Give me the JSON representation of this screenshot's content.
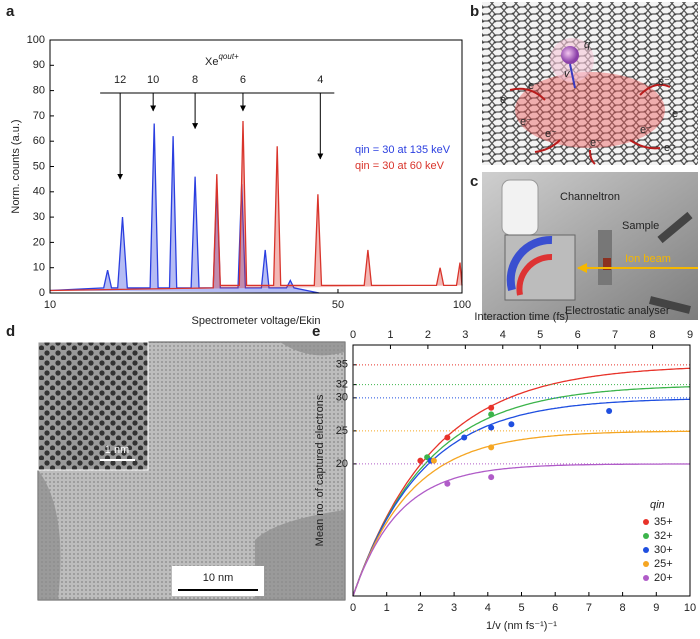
{
  "panel_labels": [
    "a",
    "b",
    "c",
    "d",
    "e"
  ],
  "chart_data": [
    {
      "type": "line",
      "title": "Xe",
      "title_superscript": "qout+",
      "x_label": "Spectrometer voltage/Ekin",
      "y_label": "Norm. counts (a.u.)",
      "xscale": "log",
      "xlim": [
        10,
        100
      ],
      "xticks": [
        10,
        50,
        100
      ],
      "ylim": [
        0,
        100
      ],
      "yticks": [
        0,
        10,
        20,
        30,
        40,
        50,
        60,
        70,
        80,
        90,
        100
      ],
      "legend": "right",
      "series": [
        {
          "name": "qin = 30 at 135 keV",
          "color": "#2b3fe0",
          "x": [
            10,
            13.5,
            13.8,
            14.1,
            14.6,
            15.0,
            15.4,
            17.5,
            17.9,
            18.3,
            19.5,
            19.9,
            20.3,
            22.0,
            22.5,
            23.0,
            24.9,
            25.4,
            25.9,
            28.6,
            29.2,
            29.8,
            32.6,
            33.3,
            34.0,
            37.5,
            38.3,
            39.1,
            45
          ],
          "values": [
            1,
            2,
            9,
            2,
            2,
            30,
            2,
            2,
            67,
            2,
            2,
            62,
            2,
            2,
            46,
            2,
            2,
            42,
            2,
            2,
            43,
            2,
            2,
            17,
            2,
            2,
            5,
            2,
            0
          ]
        },
        {
          "name": "qin = 30 at 60 keV",
          "color": "#d9342b",
          "x": [
            10,
            24.9,
            25.4,
            25.9,
            28.8,
            29.4,
            30.0,
            34.9,
            35.6,
            36.3,
            43.8,
            44.7,
            45.6,
            57.9,
            59.1,
            60.3,
            86.7,
            88.5,
            90.3,
            97,
            98.9,
            100
          ],
          "values": [
            1,
            2,
            47,
            3,
            3,
            68,
            3,
            3,
            58,
            3,
            3,
            39,
            3,
            3,
            17,
            3,
            3,
            10,
            3,
            3,
            12,
            3
          ]
        }
      ],
      "annotations": [
        {
          "text": "12",
          "x": 14.8,
          "y": 45
        },
        {
          "text": "10",
          "x": 17.8,
          "y": 72
        },
        {
          "text": "8",
          "x": 22.5,
          "y": 65
        },
        {
          "text": "6",
          "x": 29.4,
          "y": 72
        },
        {
          "text": "4",
          "x": 45.3,
          "y": 53
        }
      ]
    },
    {
      "type": "scatter",
      "x_label": "1/v (nm fs⁻¹)⁻¹",
      "x2_label": "Interaction time (fs)",
      "y_label": "Mean no. of captured electrons",
      "xlim": [
        0,
        10
      ],
      "xticks": [
        0,
        1,
        2,
        3,
        4,
        5,
        6,
        7,
        8,
        9,
        10
      ],
      "x2lim": [
        0,
        9
      ],
      "x2ticks": [
        0,
        1,
        2,
        3,
        4,
        5,
        6,
        7,
        8,
        9
      ],
      "ylim": [
        0,
        38
      ],
      "yticks": [
        20,
        25,
        30,
        32,
        35
      ],
      "legend_title": "qin",
      "legend": "lower right",
      "series": [
        {
          "name": "35+",
          "color": "#e8332a",
          "x": [
            2.0,
            2.8,
            4.1
          ],
          "values": [
            20.5,
            24,
            28.5
          ],
          "asymptote": 35,
          "tau": 2.38
        },
        {
          "name": "32+",
          "color": "#3cb44b",
          "x": [
            2.2,
            4.1
          ],
          "values": [
            21,
            27.5
          ],
          "asymptote": 32,
          "tau": 2.18
        },
        {
          "name": "30+",
          "color": "#1f4fe0",
          "x": [
            2.3,
            3.3,
            4.1,
            4.7,
            7.6
          ],
          "values": [
            20.5,
            24,
            25.5,
            26,
            28
          ],
          "asymptote": 30,
          "tau": 2.04
        },
        {
          "name": "25+",
          "color": "#f5a623",
          "x": [
            2.4,
            4.1
          ],
          "values": [
            20.5,
            22.5
          ],
          "asymptote": 25,
          "tau": 1.7
        },
        {
          "name": "20+",
          "color": "#b05cc8",
          "x": [
            2.8,
            4.1
          ],
          "values": [
            17,
            18
          ],
          "asymptote": 20,
          "tau": 1.36
        }
      ]
    }
  ],
  "panels": {
    "b": {
      "ion_charge": "q",
      "ion_velocity": "v",
      "electrons": [
        "e⁻",
        "e⁻",
        "e⁻",
        "e⁻",
        "e⁻",
        "e⁻",
        "e⁻",
        "e⁻",
        "e⁻"
      ]
    },
    "c": {
      "detector": "Channeltron",
      "sample": "Sample",
      "beam": "Ion beam",
      "analyser": "Electrostatic analyser"
    },
    "d": {
      "inset_scale": "1 nm",
      "scale": "10 nm"
    }
  }
}
